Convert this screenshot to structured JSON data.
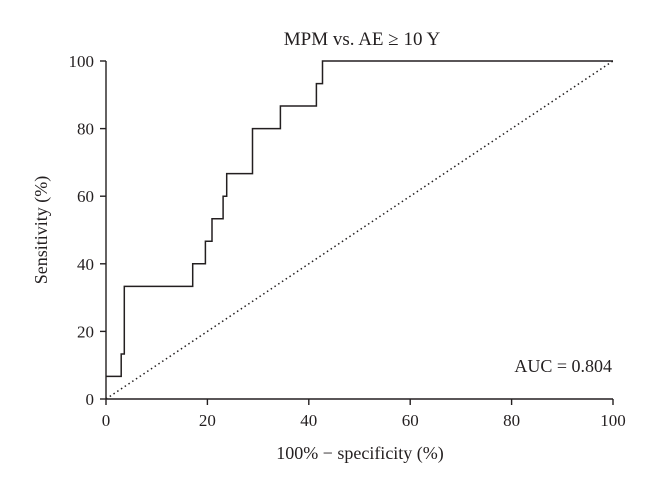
{
  "chart_data": {
    "type": "line",
    "title": "MPM vs. AE ≥ 10 Y",
    "xlabel": "100% − specificity (%)",
    "ylabel": "Sensitivity (%)",
    "xlim": [
      0,
      100
    ],
    "ylim": [
      0,
      100
    ],
    "xticks": [
      0,
      20,
      40,
      60,
      80,
      100
    ],
    "yticks": [
      0,
      20,
      40,
      60,
      80,
      100
    ],
    "grid": false,
    "annotation": "AUC = 0.804",
    "series": [
      {
        "style": "solid step",
        "x": [
          0,
          3,
          3,
          3.6,
          3.6,
          17.1,
          17.1,
          19.6,
          19.6,
          20.9,
          20.9,
          23.1,
          23.1,
          23.8,
          23.8,
          28.9,
          28.9,
          34.4,
          34.4,
          41.5,
          41.5,
          42.7,
          42.7,
          100
        ],
        "y": [
          6.7,
          6.7,
          13.3,
          13.3,
          33.3,
          33.3,
          40,
          40,
          46.7,
          46.7,
          53.3,
          53.3,
          60,
          60,
          66.7,
          66.7,
          80,
          80,
          86.7,
          86.7,
          93.3,
          93.3,
          100,
          100
        ]
      },
      {
        "style": "dotted diagonal",
        "x": [
          0,
          100
        ],
        "y": [
          0,
          100
        ]
      }
    ]
  }
}
